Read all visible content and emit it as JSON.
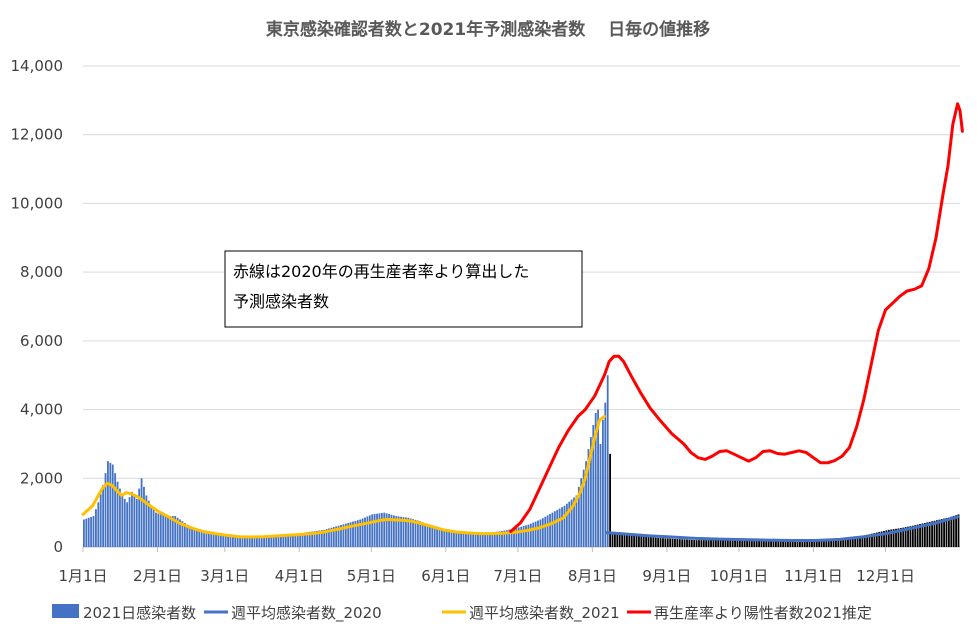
{
  "chart_data": {
    "type": "bar+line",
    "title": "東京感染確認者数と2021年予測感染者数　 日毎の値推移",
    "x_tick_labels": [
      "1月1日",
      "2月1日",
      "3月1日",
      "4月1日",
      "5月1日",
      "6月1日",
      "7月1日",
      "8月1日",
      "9月1日",
      "10月1日",
      "11月1日",
      "12月1日"
    ],
    "y_tick_labels": [
      "0",
      "2,000",
      "4,000",
      "6,000",
      "8,000",
      "10,000",
      "12,000",
      "14,000"
    ],
    "ylim": [
      0,
      14000
    ],
    "x_domain_days": [
      0,
      365
    ],
    "grid": "horizontal",
    "legend_position": "bottom",
    "annotation": [
      "赤線は2020年の再生産者率より算出した",
      "予測感染者数"
    ],
    "series": [
      {
        "name": "2021日感染者数",
        "kind": "bar",
        "color": "#4472C4",
        "color_after_aug3": "#000000",
        "points": [
          [
            0,
            800
          ],
          [
            2,
            850
          ],
          [
            4,
            900
          ],
          [
            6,
            1300
          ],
          [
            8,
            1800
          ],
          [
            10,
            2500
          ],
          [
            12,
            2400
          ],
          [
            14,
            1900
          ],
          [
            16,
            1500
          ],
          [
            18,
            1300
          ],
          [
            20,
            1600
          ],
          [
            22,
            1400
          ],
          [
            24,
            2000
          ],
          [
            26,
            1500
          ],
          [
            28,
            1200
          ],
          [
            30,
            1000
          ],
          [
            34,
            900
          ],
          [
            38,
            900
          ],
          [
            42,
            700
          ],
          [
            46,
            500
          ],
          [
            50,
            400
          ],
          [
            55,
            350
          ],
          [
            60,
            300
          ],
          [
            65,
            300
          ],
          [
            70,
            300
          ],
          [
            75,
            300
          ],
          [
            80,
            330
          ],
          [
            85,
            350
          ],
          [
            90,
            400
          ],
          [
            95,
            450
          ],
          [
            100,
            500
          ],
          [
            105,
            600
          ],
          [
            110,
            700
          ],
          [
            115,
            800
          ],
          [
            120,
            950
          ],
          [
            125,
            1000
          ],
          [
            130,
            900
          ],
          [
            135,
            850
          ],
          [
            140,
            750
          ],
          [
            145,
            600
          ],
          [
            150,
            500
          ],
          [
            155,
            450
          ],
          [
            160,
            400
          ],
          [
            165,
            400
          ],
          [
            170,
            420
          ],
          [
            175,
            480
          ],
          [
            180,
            550
          ],
          [
            185,
            650
          ],
          [
            190,
            800
          ],
          [
            195,
            1000
          ],
          [
            200,
            1200
          ],
          [
            205,
            1500
          ],
          [
            207,
            2000
          ],
          [
            209,
            2500
          ],
          [
            211,
            3200
          ],
          [
            213,
            3900
          ],
          [
            214,
            4000
          ],
          [
            215,
            3000
          ],
          [
            216,
            3700
          ],
          [
            217,
            4200
          ],
          [
            218,
            5000
          ],
          [
            220,
            420
          ],
          [
            225,
            380
          ],
          [
            230,
            330
          ],
          [
            235,
            290
          ],
          [
            240,
            260
          ],
          [
            245,
            240
          ],
          [
            250,
            220
          ],
          [
            255,
            200
          ],
          [
            260,
            200
          ],
          [
            270,
            190
          ],
          [
            280,
            190
          ],
          [
            290,
            190
          ],
          [
            300,
            190
          ],
          [
            305,
            200
          ],
          [
            310,
            220
          ],
          [
            315,
            250
          ],
          [
            320,
            290
          ],
          [
            325,
            340
          ],
          [
            330,
            420
          ],
          [
            335,
            500
          ],
          [
            340,
            550
          ],
          [
            345,
            620
          ],
          [
            350,
            700
          ],
          [
            355,
            780
          ],
          [
            360,
            860
          ],
          [
            364,
            950
          ]
        ]
      },
      {
        "name": "週平均感染者数_2020",
        "kind": "line",
        "color": "#4472C4",
        "points": [
          [
            218,
            420
          ],
          [
            225,
            380
          ],
          [
            235,
            330
          ],
          [
            245,
            290
          ],
          [
            255,
            250
          ],
          [
            265,
            230
          ],
          [
            275,
            215
          ],
          [
            285,
            200
          ],
          [
            295,
            190
          ],
          [
            305,
            190
          ],
          [
            315,
            220
          ],
          [
            325,
            300
          ],
          [
            335,
            400
          ],
          [
            345,
            550
          ],
          [
            355,
            700
          ],
          [
            360,
            800
          ],
          [
            364,
            880
          ]
        ]
      },
      {
        "name": "週平均感染者数_2021",
        "kind": "line",
        "color": "#FFC000",
        "points": [
          [
            0,
            950
          ],
          [
            4,
            1200
          ],
          [
            8,
            1700
          ],
          [
            10,
            1850
          ],
          [
            12,
            1800
          ],
          [
            14,
            1650
          ],
          [
            16,
            1500
          ],
          [
            18,
            1580
          ],
          [
            20,
            1550
          ],
          [
            23,
            1450
          ],
          [
            27,
            1250
          ],
          [
            31,
            1050
          ],
          [
            35,
            900
          ],
          [
            40,
            700
          ],
          [
            45,
            560
          ],
          [
            50,
            450
          ],
          [
            55,
            390
          ],
          [
            60,
            340
          ],
          [
            65,
            300
          ],
          [
            70,
            290
          ],
          [
            75,
            300
          ],
          [
            80,
            320
          ],
          [
            85,
            340
          ],
          [
            90,
            360
          ],
          [
            95,
            390
          ],
          [
            100,
            430
          ],
          [
            105,
            500
          ],
          [
            110,
            580
          ],
          [
            115,
            650
          ],
          [
            120,
            720
          ],
          [
            124,
            780
          ],
          [
            127,
            800
          ],
          [
            130,
            790
          ],
          [
            133,
            780
          ],
          [
            136,
            760
          ],
          [
            140,
            700
          ],
          [
            145,
            600
          ],
          [
            150,
            500
          ],
          [
            155,
            440
          ],
          [
            160,
            410
          ],
          [
            165,
            390
          ],
          [
            170,
            390
          ],
          [
            175,
            400
          ],
          [
            180,
            430
          ],
          [
            185,
            480
          ],
          [
            190,
            560
          ],
          [
            195,
            680
          ],
          [
            200,
            850
          ],
          [
            204,
            1200
          ],
          [
            207,
            1600
          ],
          [
            209,
            2000
          ],
          [
            211,
            2600
          ],
          [
            213,
            3200
          ],
          [
            215,
            3700
          ],
          [
            217,
            3800
          ]
        ]
      },
      {
        "name": "再生産率より陽性者数2021推定",
        "kind": "line",
        "color": "#FF0000",
        "points": [
          [
            178,
            450
          ],
          [
            182,
            700
          ],
          [
            186,
            1100
          ],
          [
            190,
            1700
          ],
          [
            194,
            2300
          ],
          [
            198,
            2900
          ],
          [
            202,
            3400
          ],
          [
            206,
            3800
          ],
          [
            209,
            4000
          ],
          [
            211,
            4200
          ],
          [
            213,
            4400
          ],
          [
            215,
            4700
          ],
          [
            217,
            5000
          ],
          [
            219,
            5400
          ],
          [
            221,
            5550
          ],
          [
            223,
            5550
          ],
          [
            225,
            5400
          ],
          [
            228,
            5000
          ],
          [
            232,
            4500
          ],
          [
            236,
            4050
          ],
          [
            240,
            3700
          ],
          [
            245,
            3300
          ],
          [
            250,
            3000
          ],
          [
            253,
            2750
          ],
          [
            256,
            2600
          ],
          [
            259,
            2550
          ],
          [
            262,
            2650
          ],
          [
            265,
            2780
          ],
          [
            268,
            2800
          ],
          [
            271,
            2700
          ],
          [
            274,
            2600
          ],
          [
            277,
            2500
          ],
          [
            280,
            2600
          ],
          [
            283,
            2780
          ],
          [
            286,
            2800
          ],
          [
            289,
            2720
          ],
          [
            292,
            2700
          ],
          [
            295,
            2750
          ],
          [
            298,
            2800
          ],
          [
            301,
            2750
          ],
          [
            304,
            2600
          ],
          [
            307,
            2450
          ],
          [
            310,
            2450
          ],
          [
            313,
            2520
          ],
          [
            316,
            2650
          ],
          [
            319,
            2900
          ],
          [
            322,
            3500
          ],
          [
            325,
            4300
          ],
          [
            328,
            5300
          ],
          [
            331,
            6300
          ],
          [
            334,
            6900
          ],
          [
            337,
            7100
          ],
          [
            340,
            7300
          ],
          [
            343,
            7450
          ],
          [
            346,
            7500
          ],
          [
            349,
            7600
          ],
          [
            352,
            8100
          ],
          [
            355,
            9000
          ],
          [
            358,
            10300
          ],
          [
            360,
            11100
          ],
          [
            362,
            12300
          ],
          [
            364,
            12900
          ],
          [
            365,
            12700
          ],
          [
            366,
            12100
          ]
        ]
      }
    ]
  }
}
